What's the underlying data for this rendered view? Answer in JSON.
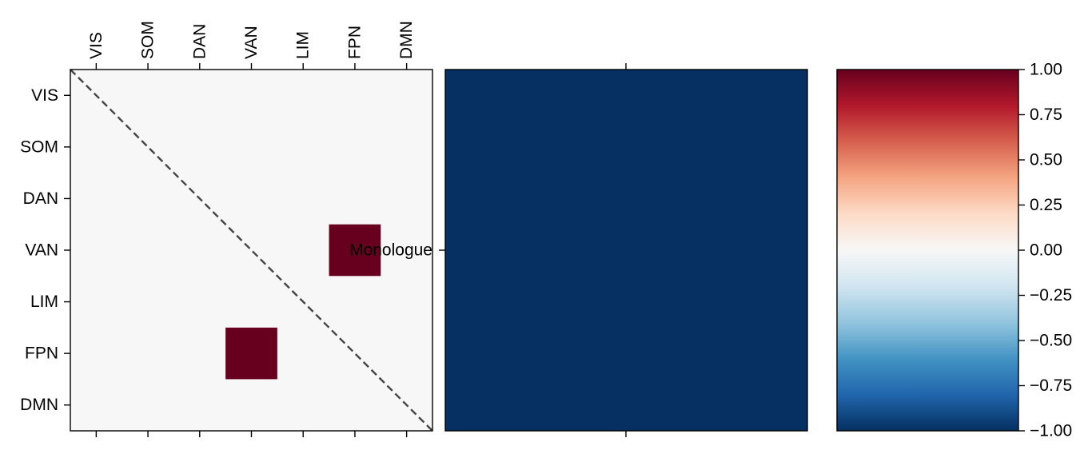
{
  "chart_data": [
    {
      "type": "heatmap",
      "panel": "network-matrix",
      "x_tick_labels": [
        "VIS",
        "SOM",
        "DAN",
        "VAN",
        "LIM",
        "FPN",
        "DMN"
      ],
      "y_tick_labels": [
        "VIS",
        "SOM",
        "DAN",
        "VAN",
        "LIM",
        "FPN",
        "DMN"
      ],
      "x_ticks_position": "top",
      "x_tick_rotation": 90,
      "values": [
        [
          0,
          0,
          0,
          0,
          0,
          0,
          0
        ],
        [
          0,
          0,
          0,
          0,
          0,
          0,
          0
        ],
        [
          0,
          0,
          0,
          0,
          0,
          0,
          0
        ],
        [
          0,
          0,
          0,
          0,
          0,
          1,
          0
        ],
        [
          0,
          0,
          0,
          0,
          0,
          0,
          0
        ],
        [
          0,
          0,
          0,
          1,
          0,
          0,
          0
        ],
        [
          0,
          0,
          0,
          0,
          0,
          0,
          0
        ]
      ],
      "diagonal_line": "dashed",
      "diagonal_color": "#444444",
      "vmin": -1.0,
      "vmax": 1.0,
      "colormap": "RdBu_r"
    },
    {
      "type": "heatmap",
      "panel": "condition-matrix",
      "y_tick_labels": [
        "Monologue"
      ],
      "values": [
        [
          -1.0
        ]
      ],
      "vmin": -1.0,
      "vmax": 1.0,
      "colormap": "RdBu_r"
    },
    {
      "type": "colorbar",
      "colormap": "RdBu_r",
      "vmin": -1.0,
      "vmax": 1.0,
      "ticks": [
        1.0,
        0.75,
        0.5,
        0.25,
        0.0,
        -0.25,
        -0.5,
        -0.75,
        -1.0
      ],
      "tick_labels": [
        "1.00",
        "0.75",
        "0.50",
        "0.25",
        "0.00",
        "−0.25",
        "−0.50",
        "−0.75",
        "−1.00"
      ],
      "colormap_stops": [
        "#053061",
        "#2166ac",
        "#4393c3",
        "#92c5de",
        "#d1e5f0",
        "#f7f7f7",
        "#fddbc7",
        "#f4a582",
        "#d6604d",
        "#b2182b",
        "#67001f"
      ]
    }
  ]
}
